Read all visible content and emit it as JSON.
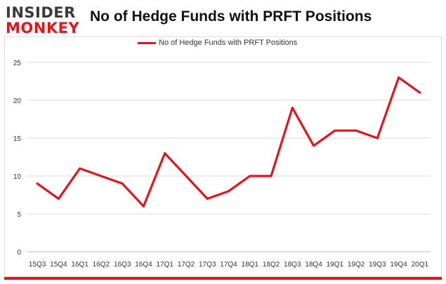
{
  "brand": {
    "line1": "INSIDER",
    "line2": "MONKEY"
  },
  "colors": {
    "series": "#e4141b",
    "grid": "#d9d9d9",
    "brand_red": "#e4141b",
    "brand_dark": "#3a3a3a"
  },
  "chart_data": {
    "type": "line",
    "title": "No of Hedge Funds with PRFT Positions",
    "xlabel": "",
    "ylabel": "",
    "categories": [
      "15Q3",
      "15Q4",
      "16Q1",
      "16Q2",
      "16Q3",
      "16Q4",
      "17Q1",
      "17Q2",
      "17Q3",
      "17Q4",
      "18Q1",
      "18Q2",
      "18Q3",
      "18Q4",
      "19Q1",
      "19Q2",
      "19Q3",
      "19Q4",
      "20Q1"
    ],
    "series": [
      {
        "name": "No of Hedge Funds with PRFT Positions",
        "values": [
          9,
          7,
          11,
          10,
          9,
          6,
          13,
          10,
          7,
          8,
          10,
          10,
          19,
          14,
          16,
          16,
          15,
          23,
          21
        ]
      }
    ],
    "ylim": [
      0,
      25
    ],
    "yticks": [
      0,
      5,
      10,
      15,
      20,
      25
    ],
    "grid": true,
    "legend_position": "top-center"
  }
}
